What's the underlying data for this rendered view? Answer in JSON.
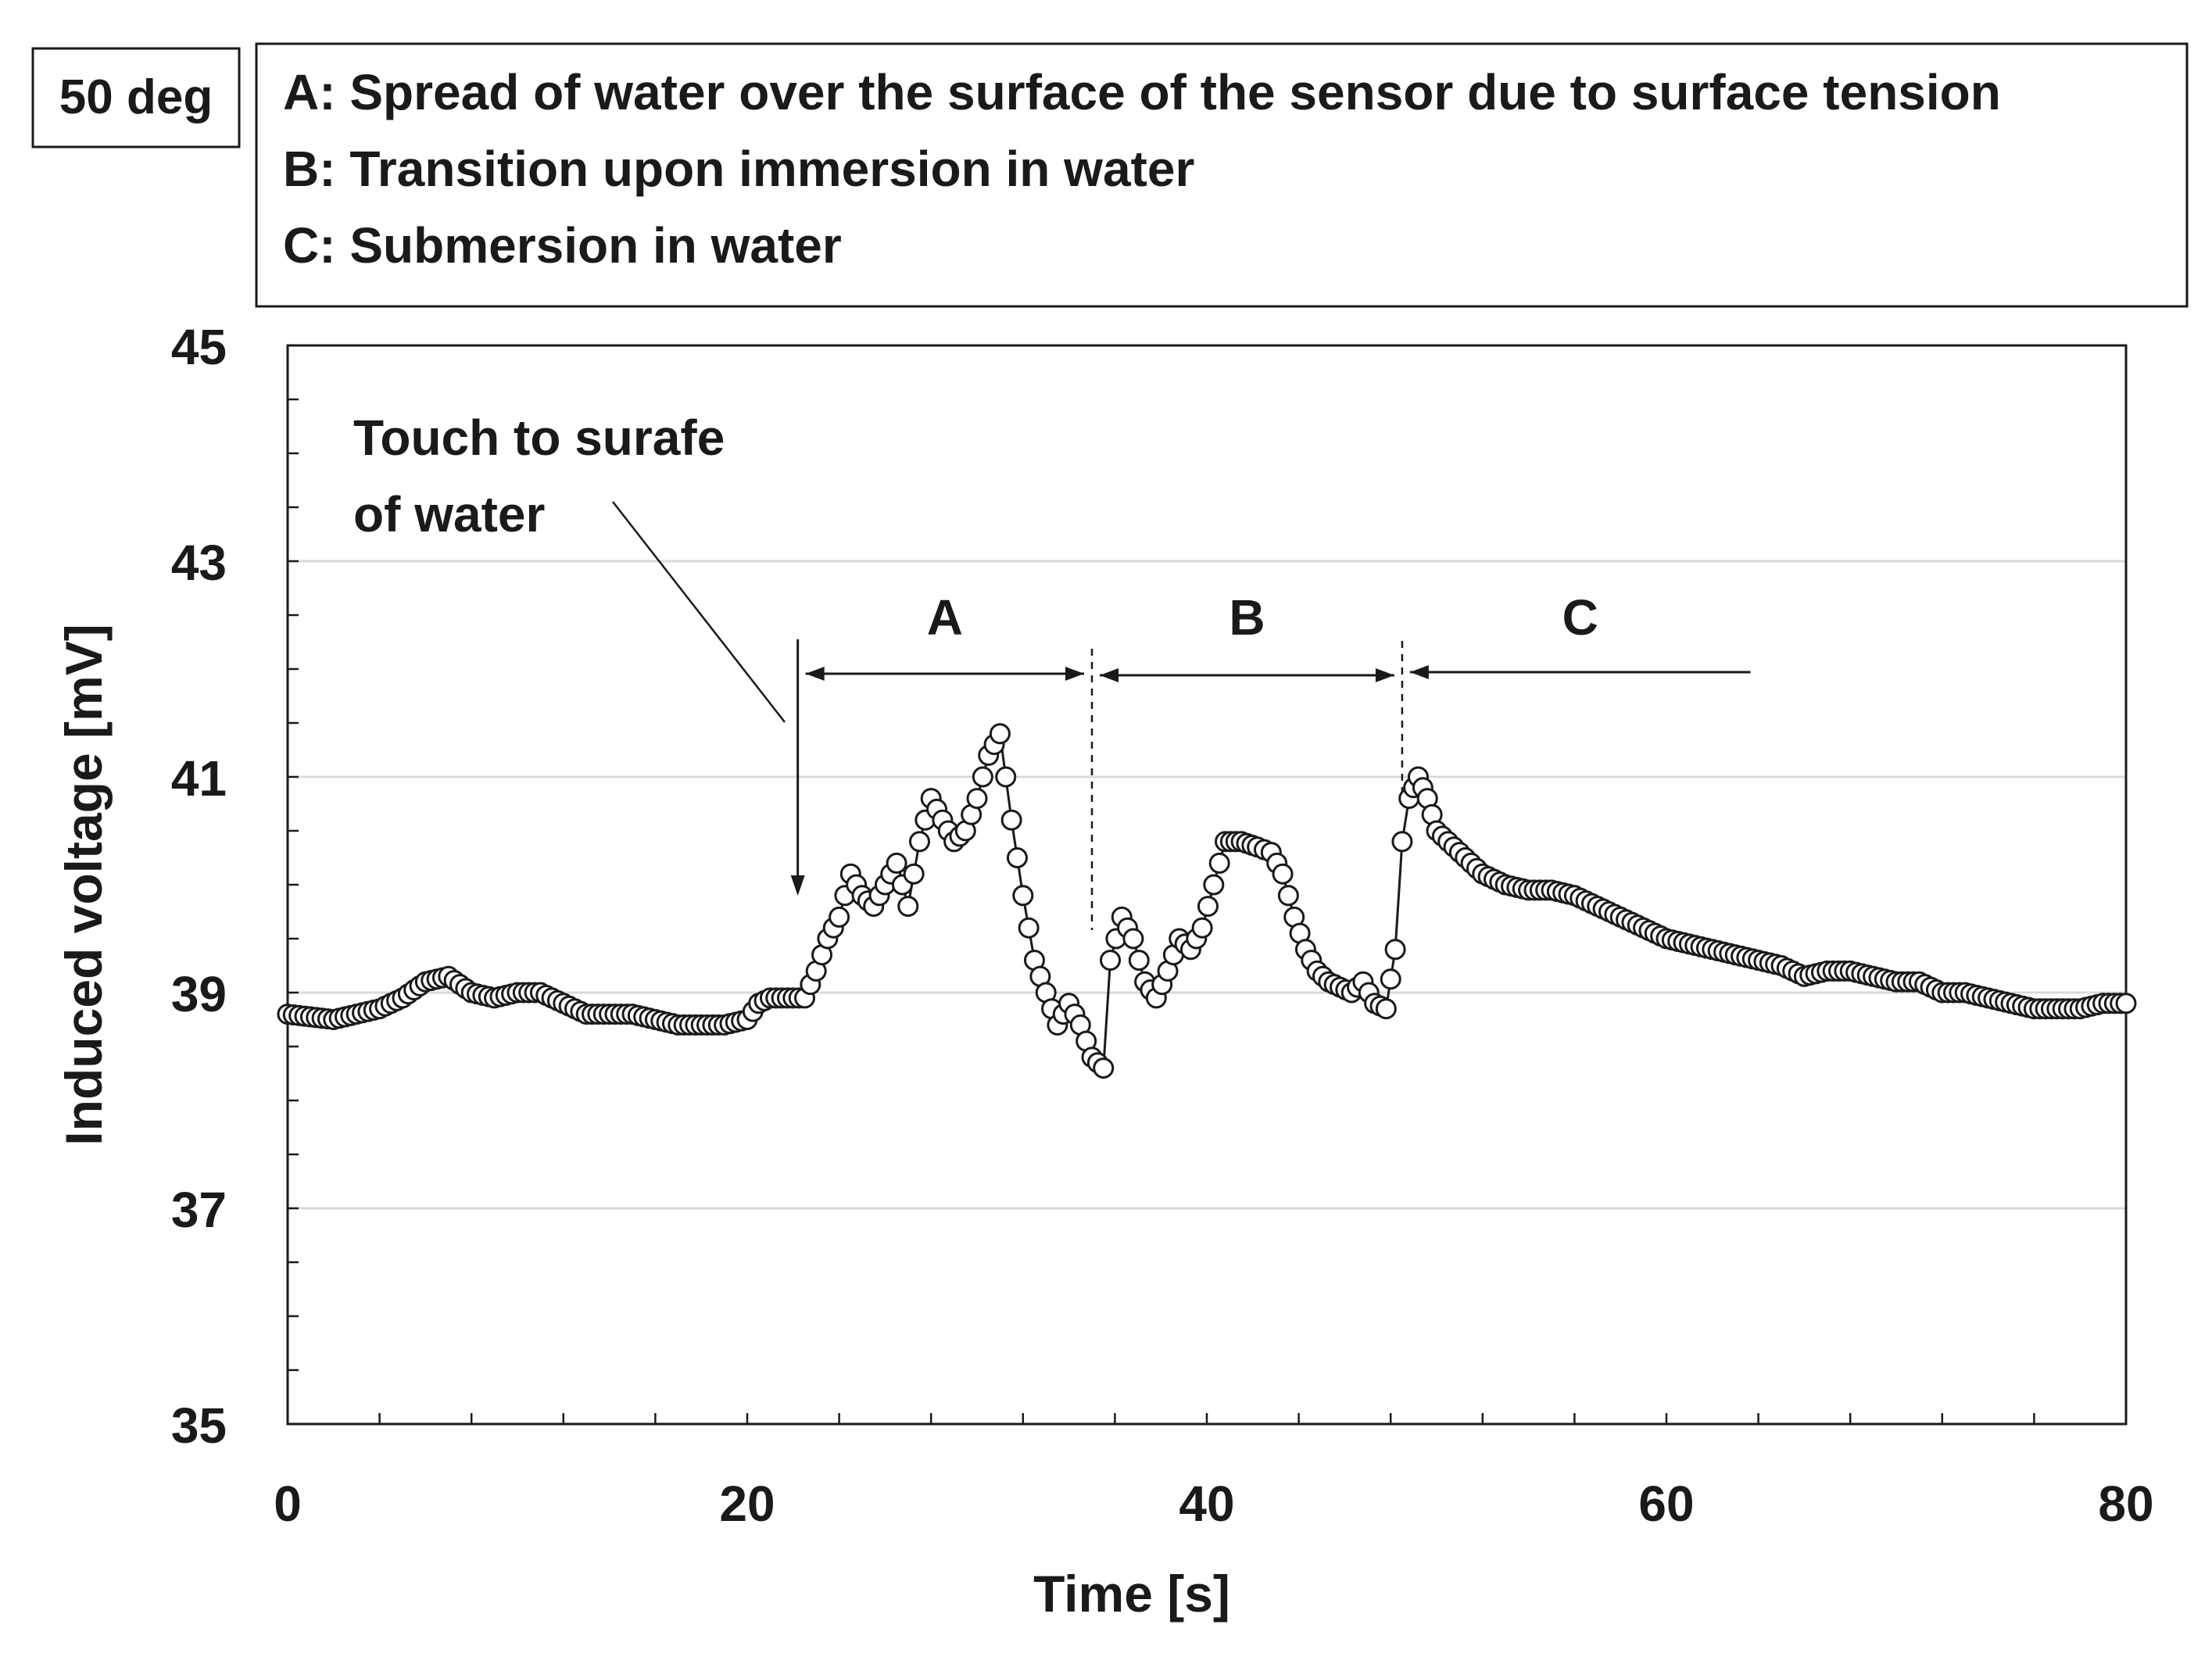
{
  "angle_label": "50 deg",
  "legend_lines": [
    "A: Spread of water over the surface of the sensor due to surface tension",
    "B: Transition  upon immersion  in water",
    "C: Submersion  in water"
  ],
  "annotation_touch": [
    "Touch  to surafe",
    "of water"
  ],
  "colors": {
    "axis": "#1a1a1a",
    "grid": "#d9d9d9",
    "marker_fill": "#ffffff",
    "marker_stroke": "#1a1a1a"
  },
  "chart_data": {
    "type": "scatter",
    "title": "",
    "xlabel": "Time   [s]",
    "ylabel": "Induced  voltage   [mV]",
    "xlim": [
      0,
      80
    ],
    "ylim": [
      35,
      45
    ],
    "xticks": [
      0,
      20,
      40,
      60,
      80
    ],
    "yticks": [
      35,
      37,
      39,
      41,
      43,
      45
    ],
    "grid": true,
    "regions": [
      {
        "label": "A",
        "start": 22.2,
        "end": 35.0
      },
      {
        "label": "B",
        "start": 35.0,
        "end": 48.5
      },
      {
        "label": "C",
        "start": 48.5,
        "end": 64.0
      }
    ],
    "touch_time": 22.2,
    "series": [
      {
        "name": "Induced voltage",
        "x": [
          0,
          2,
          4,
          5,
          6,
          7,
          8,
          9,
          10,
          11,
          12,
          13,
          14,
          15,
          16,
          17,
          18,
          19,
          20,
          20.5,
          21,
          21.5,
          22,
          22.5,
          23,
          23.5,
          24,
          24.5,
          25,
          25.5,
          26,
          26.5,
          27,
          27.5,
          28,
          28.5,
          29,
          29.5,
          30,
          30.5,
          31,
          31.5,
          32,
          32.5,
          33,
          33.5,
          34,
          34.5,
          35,
          35.5,
          35.8,
          36.3,
          36.8,
          37.3,
          37.8,
          38.3,
          38.8,
          39.3,
          39.8,
          40.3,
          40.8,
          41.5,
          42.2,
          42.8,
          43.3,
          43.8,
          44.3,
          44.8,
          45.3,
          45.8,
          46.3,
          46.8,
          47.3,
          47.8,
          48.2,
          48.5,
          48.8,
          49.2,
          49.6,
          50,
          51,
          52,
          53,
          54,
          55,
          56,
          57,
          58,
          59,
          60,
          61,
          62,
          63,
          64,
          65,
          66,
          67,
          68,
          69,
          70,
          71,
          72,
          73,
          74,
          75,
          76,
          77,
          78,
          79,
          80
        ],
        "values": [
          38.8,
          38.75,
          38.85,
          38.95,
          39.1,
          39.15,
          39.0,
          38.95,
          39.0,
          39.0,
          38.9,
          38.8,
          38.8,
          38.8,
          38.75,
          38.7,
          38.7,
          38.7,
          38.75,
          38.9,
          38.95,
          38.95,
          38.95,
          38.95,
          39.2,
          39.5,
          39.7,
          40.1,
          39.9,
          39.8,
          40.0,
          40.2,
          39.8,
          40.4,
          40.8,
          40.6,
          40.4,
          40.5,
          40.8,
          41.2,
          41.4,
          40.6,
          39.9,
          39.3,
          39.0,
          38.7,
          38.9,
          38.7,
          38.4,
          38.3,
          39.3,
          39.7,
          39.5,
          39.1,
          38.95,
          39.2,
          39.5,
          39.4,
          39.6,
          40.0,
          40.4,
          40.4,
          40.35,
          40.3,
          40.1,
          39.7,
          39.4,
          39.2,
          39.1,
          39.05,
          39.0,
          39.1,
          38.9,
          38.85,
          39.4,
          40.4,
          40.8,
          41.0,
          40.8,
          40.5,
          40.3,
          40.1,
          40.0,
          39.95,
          39.95,
          39.9,
          39.8,
          39.7,
          39.6,
          39.5,
          39.45,
          39.4,
          39.35,
          39.3,
          39.25,
          39.15,
          39.2,
          39.2,
          39.15,
          39.1,
          39.1,
          39.0,
          39.0,
          38.95,
          38.9,
          38.85,
          38.85,
          38.85,
          38.9,
          38.9
        ]
      }
    ]
  }
}
